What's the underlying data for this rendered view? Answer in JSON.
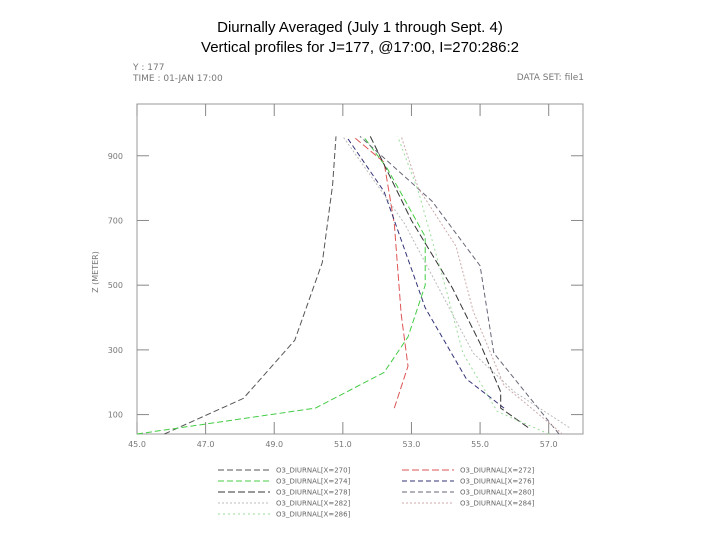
{
  "slide": {
    "title_line1": "Diurnally Averaged (July 1 through Sept. 4)",
    "title_line2": "Vertical profiles for J=177, @17:00, I=270:286:2"
  },
  "plot_header": {
    "y_info": "Y : 177",
    "time_info": "TIME : 01-JAN 17:00",
    "dataset": "DATA SET: file1"
  },
  "chart_data": {
    "type": "line",
    "xlim": [
      45,
      58
    ],
    "ylim": [
      40,
      1060
    ],
    "ylabel": "Z (METER)",
    "xlabel": "",
    "x_ticks": [
      "45.0",
      "47.0",
      "49.0",
      "51.0",
      "53.0",
      "55.0",
      "57.0"
    ],
    "y_ticks": [
      "100",
      "300",
      "500",
      "700",
      "900"
    ],
    "grid": false,
    "series": [
      {
        "name": "O3_DIURNAL[X=270]",
        "color": "#555555",
        "dash": "6,3",
        "points": [
          [
            45.8,
            40
          ],
          [
            48.1,
            150
          ],
          [
            49.6,
            330
          ],
          [
            50.4,
            570
          ],
          [
            50.7,
            810
          ],
          [
            50.8,
            960
          ]
        ]
      },
      {
        "name": "O3_DIURNAL[X=272]",
        "color": "#dd5555",
        "dash": "7,3",
        "points": [
          [
            52.5,
            120
          ],
          [
            52.9,
            250
          ],
          [
            52.7,
            410
          ],
          [
            52.5,
            690
          ],
          [
            52.2,
            880
          ],
          [
            51.3,
            960
          ]
        ]
      },
      {
        "name": "O3_DIURNAL[X=274]",
        "color": "#44cc44",
        "dash": "6,3",
        "points": [
          [
            45.0,
            40
          ],
          [
            50.2,
            120
          ],
          [
            52.2,
            230
          ],
          [
            52.9,
            340
          ],
          [
            53.4,
            500
          ],
          [
            53.4,
            650
          ],
          [
            52.3,
            860
          ],
          [
            51.6,
            960
          ]
        ]
      },
      {
        "name": "O3_DIURNAL[X=276]",
        "color": "#333377",
        "dash": "5,3",
        "points": [
          [
            55.7,
            120
          ],
          [
            54.6,
            210
          ],
          [
            53.4,
            430
          ],
          [
            52.7,
            640
          ],
          [
            52.2,
            790
          ],
          [
            51.1,
            960
          ]
        ]
      },
      {
        "name": "O3_DIURNAL[X=278]",
        "color": "#333333",
        "dash": "7,3",
        "points": [
          [
            56.4,
            60
          ],
          [
            55.6,
            120
          ],
          [
            55.6,
            170
          ],
          [
            55.0,
            320
          ],
          [
            54.2,
            490
          ],
          [
            53.0,
            700
          ],
          [
            51.8,
            960
          ]
        ]
      },
      {
        "name": "O3_DIURNAL[X=280]",
        "color": "#666677",
        "dash": "5,3",
        "points": [
          [
            57.3,
            40
          ],
          [
            55.4,
            290
          ],
          [
            55.0,
            560
          ],
          [
            53.6,
            760
          ],
          [
            51.5,
            960
          ]
        ]
      },
      {
        "name": "O3_DIURNAL[X=282]",
        "color": "#bbbbbb",
        "dash": "2,2",
        "points": [
          [
            57.6,
            60
          ],
          [
            56.0,
            170
          ],
          [
            54.8,
            290
          ],
          [
            54.0,
            450
          ],
          [
            52.8,
            690
          ],
          [
            51.0,
            960
          ]
        ]
      },
      {
        "name": "O3_DIURNAL[X=284]",
        "color": "#ccaaaa",
        "dash": "2,2",
        "points": [
          [
            57.4,
            40
          ],
          [
            55.7,
            190
          ],
          [
            54.8,
            420
          ],
          [
            54.3,
            620
          ],
          [
            53.2,
            800
          ],
          [
            52.7,
            960
          ]
        ]
      },
      {
        "name": "O3_DIURNAL[X=286]",
        "color": "#99dd99",
        "dash": "2,3",
        "points": [
          [
            57.0,
            40
          ],
          [
            55.5,
            110
          ],
          [
            54.5,
            290
          ],
          [
            54.0,
            490
          ],
          [
            53.2,
            790
          ],
          [
            52.6,
            960
          ]
        ]
      }
    ]
  }
}
